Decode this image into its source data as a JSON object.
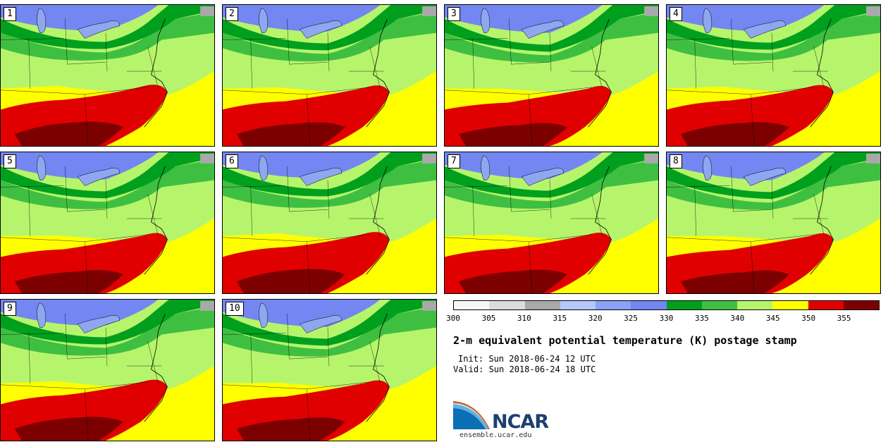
{
  "panels": [
    {
      "label": "1"
    },
    {
      "label": "2"
    },
    {
      "label": "3"
    },
    {
      "label": "4"
    },
    {
      "label": "5"
    },
    {
      "label": "6"
    },
    {
      "label": "7"
    },
    {
      "label": "8"
    },
    {
      "label": "9"
    },
    {
      "label": "10"
    }
  ],
  "colorbar": {
    "ticks": [
      "300",
      "305",
      "310",
      "315",
      "320",
      "325",
      "330",
      "335",
      "340",
      "345",
      "350",
      "355"
    ],
    "colors": [
      "#f7f7f7",
      "#dcdcdc",
      "#a9a9a9",
      "#b4c8fb",
      "#8aa2f7",
      "#7486f1",
      "#00a01e",
      "#3fbf41",
      "#b6f56b",
      "#ffff00",
      "#e00000",
      "#7d0000"
    ]
  },
  "map_colors": {
    "water": "#b6f56b",
    "cold": "#7486f1",
    "cool": "#8aa2f7",
    "green_dark": "#00a01e",
    "green_mid": "#3fbf41",
    "green_light": "#b6f56b",
    "yellow": "#ffff00",
    "red": "#e00000",
    "dark_red": "#7d0000",
    "lake": "#8fa6f0",
    "gray": "#a9a9a9"
  },
  "title": "2-m equivalent potential temperature (K) postage stamp",
  "init": "Init: Sun 2018-06-24 12 UTC",
  "valid": "Valid: Sun 2018-06-24 18 UTC",
  "logo": {
    "name": "NCAR",
    "url": "ensemble.ucar.edu"
  }
}
